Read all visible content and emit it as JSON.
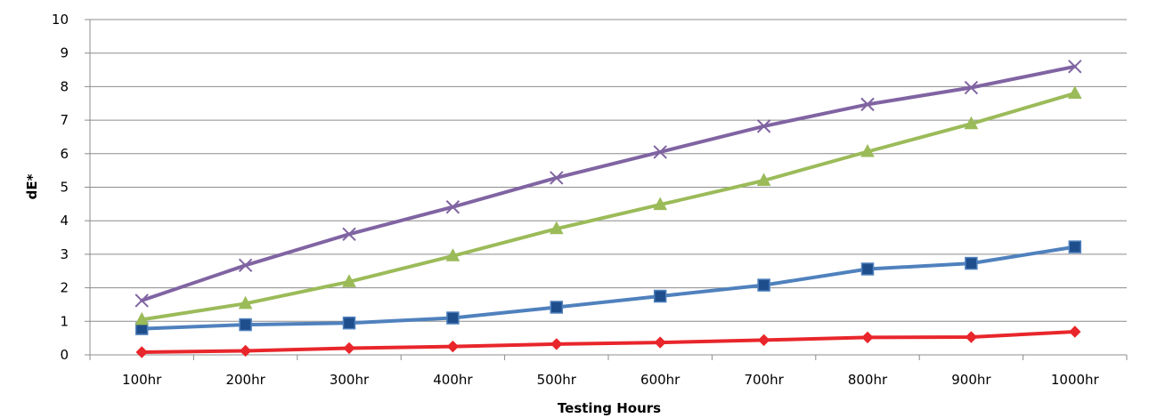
{
  "chart_data": {
    "type": "line",
    "title": "",
    "xlabel": "Testing Hours",
    "ylabel": "dE*",
    "categories": [
      "100hr",
      "200hr",
      "300hr",
      "400hr",
      "500hr",
      "600hr",
      "700hr",
      "800hr",
      "900hr",
      "1000hr"
    ],
    "ylim": [
      0,
      10
    ],
    "yticks": [
      0,
      1,
      2,
      3,
      4,
      5,
      6,
      7,
      8,
      9,
      10
    ],
    "grid": true,
    "legend": "none",
    "series": [
      {
        "color": "#E8262B",
        "marker": "diamond",
        "marker_color": "#E8262B",
        "values": [
          0.08,
          0.12,
          0.2,
          0.25,
          0.32,
          0.37,
          0.44,
          0.52,
          0.53,
          0.69
        ]
      },
      {
        "color": "#4F81BD",
        "marker": "square",
        "marker_color": "#1F4E8C",
        "values": [
          0.78,
          0.9,
          0.95,
          1.1,
          1.42,
          1.75,
          2.08,
          2.56,
          2.73,
          3.22
        ]
      },
      {
        "color": "#9BBB59",
        "marker": "triangle",
        "marker_color": "#9BBB59",
        "values": [
          1.05,
          1.53,
          2.18,
          2.95,
          3.76,
          4.48,
          5.2,
          6.06,
          6.89,
          7.8
        ]
      },
      {
        "color": "#8064A2",
        "marker": "x",
        "marker_color": "#8064A2",
        "values": [
          1.62,
          2.67,
          3.6,
          4.41,
          5.28,
          6.05,
          6.82,
          7.47,
          7.97,
          8.6
        ]
      }
    ]
  }
}
